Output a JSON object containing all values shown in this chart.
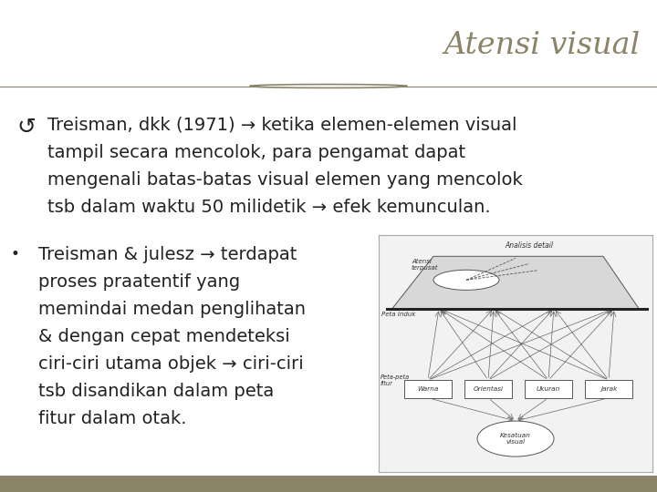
{
  "title": "Atensi visual",
  "title_color": "#8B8468",
  "bg_color": "#FFFFFF",
  "content_bg": "#D6C9A0",
  "footer_color": "#8B8468",
  "bullet1_symbol": "↺",
  "bullet1_lines": [
    "Treisman, dkk (1971) → ketika elemen-elemen visual",
    "tampil secara mencolok, para pengamat dapat",
    "mengenali batas-batas visual elemen yang mencolok",
    "tsb dalam waktu 50 milidetik → efek kemunculan."
  ],
  "bullet2_symbol": "•",
  "bullet2_lines": [
    "Treisman & julesz → terdapat",
    "proses praatentif yang",
    "memindai medan penglihatan",
    "& dengan cepat mendeteksi",
    "ciri-ciri utama objek → ciri-ciri",
    "tsb disandikan dalam peta",
    "fitur dalam otak."
  ],
  "text_color": "#222222",
  "separator_color": "#8B8468",
  "font_size_title": 24,
  "font_size_body": 14,
  "diagram_bg": "#F0F0F0",
  "diagram_line": "#555555",
  "diagram_labels": [
    "Warna",
    "Orientasi",
    "Ukuran",
    "Jarak"
  ],
  "diagram_label_top1": "Analisis detail",
  "diagram_label_top2": "Atensi\nterpusat",
  "diagram_label_mid": "Peta Induk",
  "diagram_label_box": "Peta-peta\nfitur",
  "diagram_label_circle": "Kesatuan\nvisual"
}
